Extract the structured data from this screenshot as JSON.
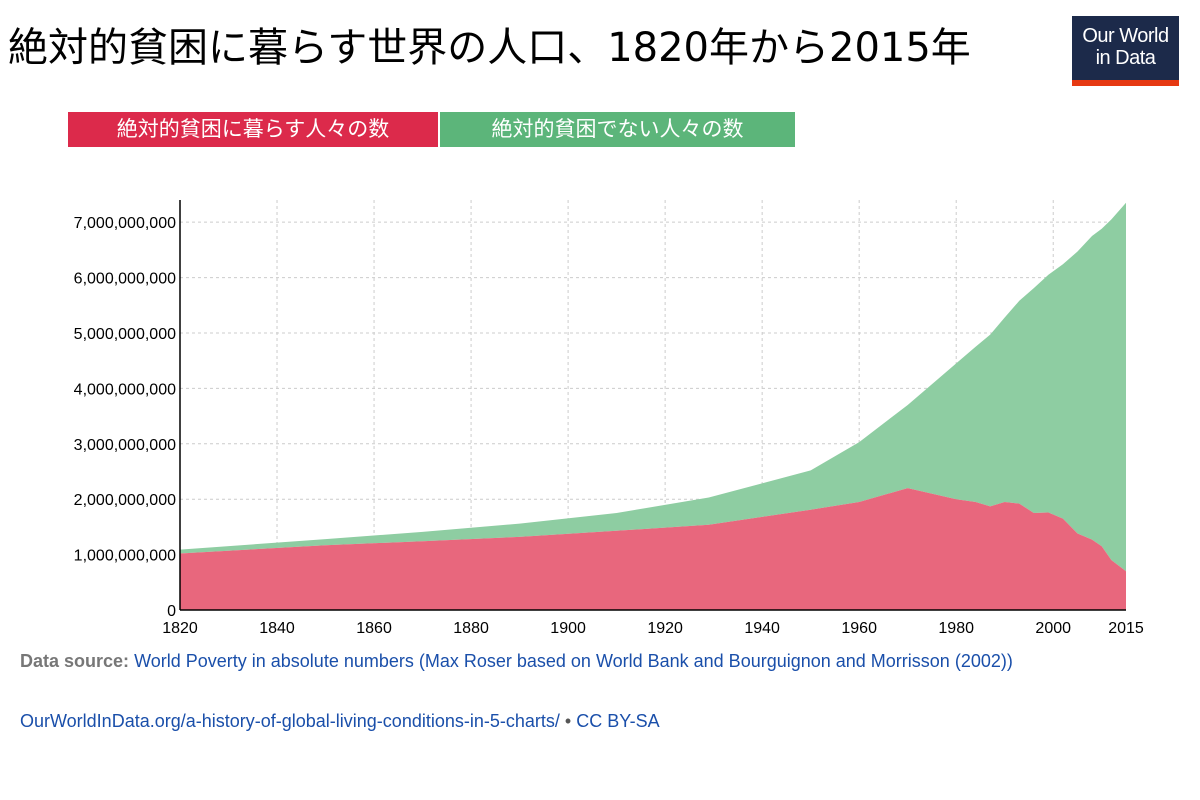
{
  "title": "絶対的貧困に暮らす世界の人口、1820年から2015年",
  "logo": {
    "line1": "Our World",
    "line2": "in Data"
  },
  "colors": {
    "poor": "#e8677d",
    "nonpoor": "#8ecda2",
    "legend_poor": "#dc2a4b",
    "legend_nonpoor": "#5cb57a",
    "grid": "#cccccc",
    "link": "#1a4faa",
    "logo_bg": "#1c2a4a",
    "logo_bar": "#e63912"
  },
  "chart_data": {
    "type": "area",
    "stacked": true,
    "legend_position": "top-left",
    "grid": true,
    "xlim": [
      1820,
      2015
    ],
    "ylim": [
      0,
      7400000000
    ],
    "x_ticks": [
      1820,
      1840,
      1860,
      1880,
      1900,
      1920,
      1940,
      1960,
      1980,
      2000,
      2015
    ],
    "y_ticks": [
      0,
      1000000000,
      2000000000,
      3000000000,
      4000000000,
      5000000000,
      6000000000,
      7000000000
    ],
    "x_tick_labels": [
      "1820",
      "1840",
      "1860",
      "1880",
      "1900",
      "1920",
      "1940",
      "1960",
      "1980",
      "2000",
      "2015"
    ],
    "y_tick_labels": [
      "0",
      "1,000,000,000",
      "2,000,000,000",
      "3,000,000,000",
      "4,000,000,000",
      "5,000,000,000",
      "6,000,000,000",
      "7,000,000,000"
    ],
    "x": [
      1820,
      1850,
      1870,
      1890,
      1910,
      1929,
      1950,
      1960,
      1970,
      1980,
      1984,
      1987,
      1990,
      1993,
      1996,
      1999,
      2002,
      2005,
      2008,
      2010,
      2012,
      2015
    ],
    "series": [
      {
        "name": "絶対的貧困に暮らす人々の数",
        "color": "#e8677d",
        "values": [
          1020000000,
          1170000000,
          1240000000,
          1320000000,
          1430000000,
          1540000000,
          1810000000,
          1950000000,
          2200000000,
          2000000000,
          1950000000,
          1870000000,
          1950000000,
          1920000000,
          1750000000,
          1760000000,
          1650000000,
          1380000000,
          1270000000,
          1150000000,
          900000000,
          700000000
        ]
      },
      {
        "name": "絶対的貧困でない人々の数",
        "color": "#8ecda2",
        "values": [
          70000000,
          110000000,
          170000000,
          240000000,
          320000000,
          490000000,
          710000000,
          1080000000,
          1500000000,
          2450000000,
          2800000000,
          3100000000,
          3330000000,
          3660000000,
          4060000000,
          4290000000,
          4590000000,
          5090000000,
          5480000000,
          5730000000,
          6150000000,
          6650000000
        ]
      }
    ]
  },
  "source": {
    "label": "Data source:",
    "text": "World Poverty in absolute numbers (Max Roser based on World Bank and Bourguignon and Morrisson (2002))"
  },
  "footer": {
    "url": "OurWorldInData.org/a-history-of-global-living-conditions-in-5-charts/",
    "separator": "•",
    "license": "CC BY-SA"
  }
}
